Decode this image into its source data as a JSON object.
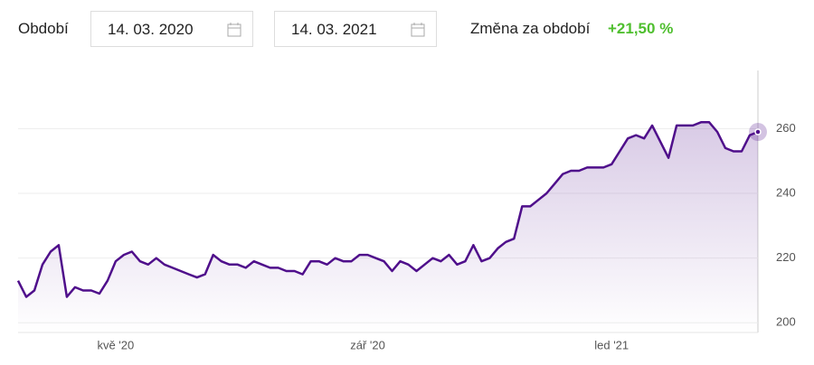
{
  "header": {
    "period_label": "Období",
    "date_from": "14. 03. 2020",
    "date_to": "14. 03. 2021",
    "change_label": "Změna za období",
    "change_value": "+21,50 %"
  },
  "chart_data": {
    "type": "line",
    "color": "#4f0f8b",
    "fill": true,
    "grid": true,
    "categories": [
      null,
      null,
      null,
      null,
      null,
      null,
      null,
      null,
      null,
      null,
      null,
      null,
      "kvě '20",
      null,
      null,
      null,
      null,
      null,
      null,
      null,
      null,
      null,
      null,
      null,
      null,
      null,
      null,
      null,
      null,
      null,
      null,
      null,
      null,
      null,
      null,
      null,
      null,
      null,
      null,
      null,
      null,
      null,
      null,
      "zář '20",
      null,
      null,
      null,
      null,
      null,
      null,
      null,
      null,
      null,
      null,
      null,
      null,
      null,
      null,
      null,
      null,
      null,
      null,
      null,
      null,
      null,
      null,
      null,
      null,
      null,
      null,
      null,
      null,
      null,
      "led '21",
      null,
      null,
      null,
      null,
      null,
      null,
      null,
      null,
      null,
      null,
      null,
      null,
      null,
      null,
      null,
      null,
      null,
      null
    ],
    "values": [
      213,
      208,
      210,
      218,
      222,
      224,
      208,
      211,
      210,
      210,
      209,
      213,
      219,
      221,
      222,
      219,
      218,
      220,
      218,
      217,
      216,
      215,
      214,
      215,
      221,
      219,
      218,
      218,
      217,
      219,
      218,
      217,
      217,
      216,
      216,
      215,
      219,
      219,
      218,
      220,
      219,
      219,
      221,
      221,
      220,
      219,
      216,
      219,
      218,
      216,
      218,
      220,
      219,
      221,
      218,
      219,
      224,
      219,
      220,
      223,
      225,
      226,
      236,
      236,
      238,
      240,
      243,
      246,
      247,
      247,
      248,
      248,
      248,
      249,
      253,
      257,
      258,
      257,
      261,
      256,
      251,
      261,
      261,
      261,
      262,
      262,
      259,
      254,
      253,
      253,
      258,
      259
    ],
    "ylim": [
      197,
      278
    ],
    "yticks": [
      200,
      220,
      240,
      260
    ]
  }
}
